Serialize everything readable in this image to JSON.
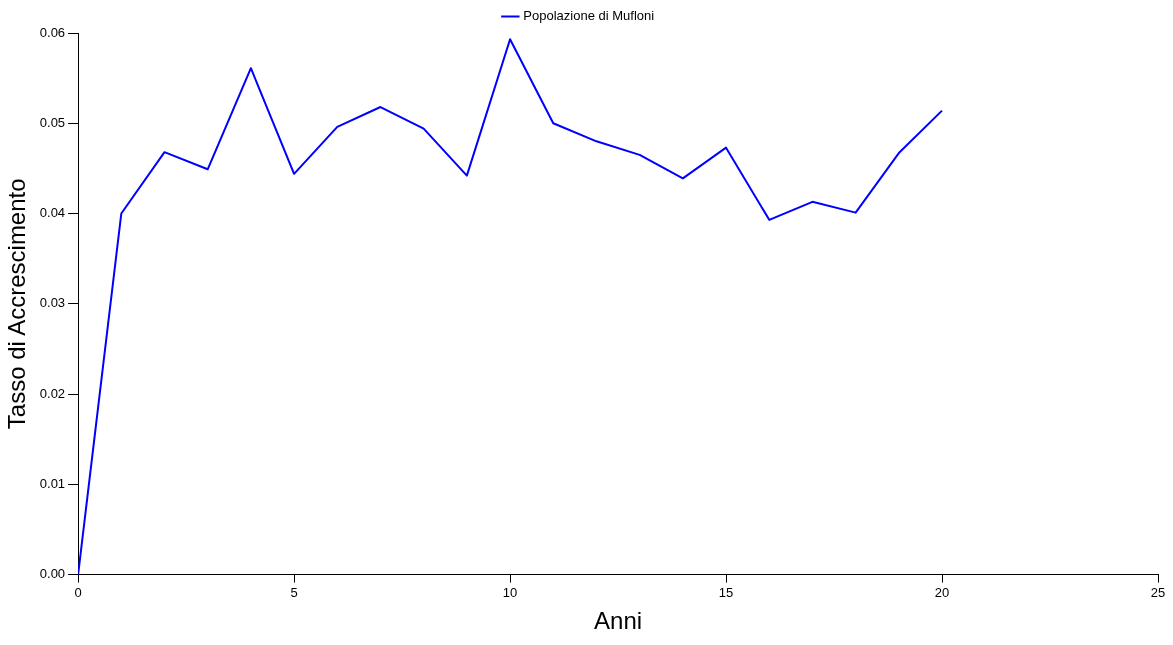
{
  "chart_data": {
    "type": "line",
    "xlabel": "Anni",
    "ylabel": "Tasso di Accrescimento",
    "x": [
      0,
      1,
      2,
      3,
      4,
      5,
      6,
      7,
      8,
      9,
      10,
      11,
      12,
      13,
      14,
      15,
      16,
      17,
      18,
      19,
      20
    ],
    "series": [
      {
        "name": "Popolazione di Mufloni",
        "color": "#0000ff",
        "values": [
          0,
          0.04,
          0.0468,
          0.0449,
          0.0561,
          0.0444,
          0.0496,
          0.0518,
          0.0494,
          0.0442,
          0.0593,
          0.05,
          0.048,
          0.0465,
          0.0439,
          0.0473,
          0.0393,
          0.0413,
          0.0401,
          0.0467,
          0.0514
        ]
      }
    ],
    "xlim": [
      0,
      25
    ],
    "xticks": [
      0,
      5,
      10,
      15,
      20,
      25
    ],
    "ylim": [
      0,
      0.06
    ],
    "yticks": [
      {
        "value": 0,
        "label": "0.00"
      },
      {
        "value": 0.01,
        "label": "0.01"
      },
      {
        "value": 0.02,
        "label": "0.02"
      },
      {
        "value": 0.03,
        "label": "0.03"
      },
      {
        "value": 0.04,
        "label": "0.04"
      },
      {
        "value": 0.05,
        "label": "0.05"
      },
      {
        "value": 0.06,
        "label": "0.06"
      }
    ],
    "grid": false,
    "legend": "top",
    "marker": "none",
    "line_style": "solid"
  }
}
